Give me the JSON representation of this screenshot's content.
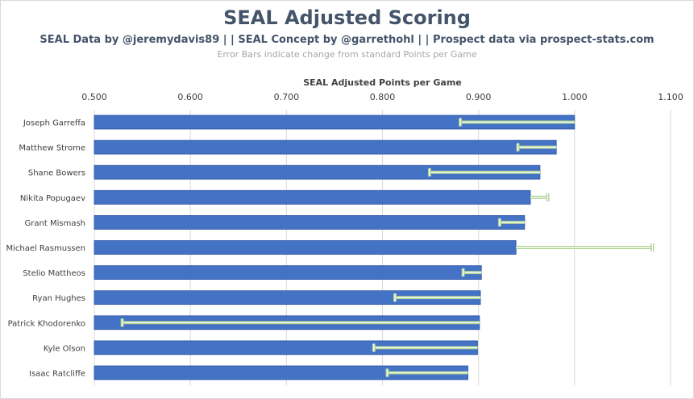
{
  "chart_data": {
    "type": "bar",
    "orientation": "horizontal",
    "title": "SEAL Adjusted Scoring",
    "subtitle": "SEAL Data by @jeremydavis89 | | SEAL Concept by @garrethohl | | Prospect data via prospect-stats.com",
    "note": "Error Bars indicate change from  standard Points per Game",
    "xlabel": "SEAL Adjusted Points per Game",
    "ylabel": "",
    "xlim": [
      0.5,
      1.1
    ],
    "ticks": [
      "0.500",
      "0.600",
      "0.700",
      "0.800",
      "0.900",
      "1.000",
      "1.100"
    ],
    "tick_values": [
      0.5,
      0.6,
      0.7,
      0.8,
      0.9,
      1.0,
      1.1
    ],
    "grid": true,
    "categories": [
      "Joseph Garreffa",
      "Matthew Strome",
      "Shane Bowers",
      "Nikita Popugaev",
      "Grant Mismash",
      "Michael Rasmussen",
      "Stelio Mattheos",
      "Ryan Hughes",
      "Patrick Khodorenko",
      "Kyle Olson",
      "Isaac Ratcliffe"
    ],
    "values": [
      1.0,
      0.981,
      0.964,
      0.954,
      0.948,
      0.939,
      0.903,
      0.902,
      0.901,
      0.899,
      0.889
    ],
    "error_bar_end": [
      0.881,
      0.941,
      0.849,
      0.972,
      0.922,
      1.081,
      0.884,
      0.813,
      0.529,
      0.791,
      0.805
    ],
    "colors": {
      "bar": "#4472c4",
      "bar_dark": "#2f52a8",
      "error_bar": "#a9d18e",
      "grid": "#d9d9d9",
      "text": "#404040",
      "title": "#44546a"
    }
  }
}
